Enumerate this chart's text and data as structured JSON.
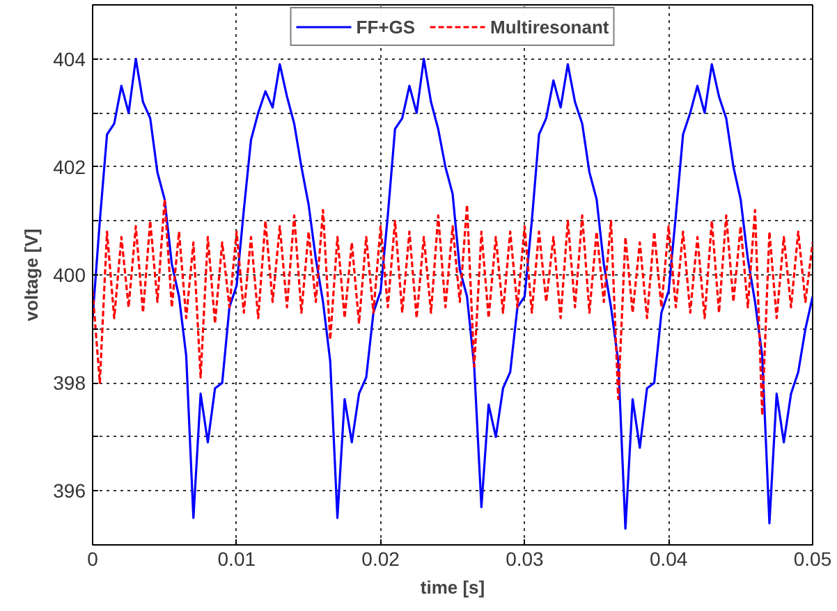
{
  "chart_data": {
    "type": "line",
    "xlabel": "time [s]",
    "ylabel": "voltage [V]",
    "x": [
      0,
      0.0005,
      0.001,
      0.0015,
      0.002,
      0.0025,
      0.003,
      0.0035,
      0.004,
      0.0045,
      0.005,
      0.0055,
      0.006,
      0.0065,
      0.007,
      0.0075,
      0.008,
      0.0085,
      0.009,
      0.0095,
      0.01,
      0.0105,
      0.011,
      0.0115,
      0.012,
      0.0125,
      0.013,
      0.0135,
      0.014,
      0.0145,
      0.015,
      0.0155,
      0.016,
      0.0165,
      0.017,
      0.0175,
      0.018,
      0.0185,
      0.019,
      0.0195,
      0.02,
      0.0205,
      0.021,
      0.0215,
      0.022,
      0.0225,
      0.023,
      0.0235,
      0.024,
      0.0245,
      0.025,
      0.0255,
      0.026,
      0.0265,
      0.027,
      0.0275,
      0.028,
      0.0285,
      0.029,
      0.0295,
      0.03,
      0.0305,
      0.031,
      0.0315,
      0.032,
      0.0325,
      0.033,
      0.0335,
      0.034,
      0.0345,
      0.035,
      0.0355,
      0.036,
      0.0365,
      0.037,
      0.0375,
      0.038,
      0.0385,
      0.039,
      0.0395,
      0.04,
      0.0405,
      0.041,
      0.0415,
      0.042,
      0.0425,
      0.043,
      0.0435,
      0.044,
      0.0445,
      0.045,
      0.0455,
      0.046,
      0.0465,
      0.047,
      0.0475,
      0.048,
      0.0485,
      0.049,
      0.0495,
      0.05
    ],
    "series": [
      {
        "name": "FF+GS",
        "color": "#0000ff",
        "line_style": "solid",
        "values": [
          399.2,
          401.0,
          402.6,
          402.8,
          403.5,
          403.0,
          404.0,
          403.2,
          402.9,
          401.9,
          401.4,
          400.2,
          399.6,
          398.5,
          395.5,
          397.8,
          396.9,
          397.9,
          398.0,
          399.4,
          399.8,
          401.2,
          402.5,
          403.0,
          403.4,
          403.1,
          403.9,
          403.3,
          402.8,
          402.0,
          401.3,
          400.3,
          399.5,
          398.4,
          395.5,
          397.7,
          396.9,
          397.8,
          398.1,
          399.3,
          399.7,
          401.1,
          402.7,
          402.9,
          403.5,
          403.0,
          404.0,
          403.2,
          402.7,
          402.0,
          401.5,
          400.1,
          399.6,
          398.3,
          395.7,
          397.6,
          397.0,
          397.9,
          398.2,
          399.4,
          399.6,
          401.0,
          402.6,
          402.9,
          403.6,
          403.1,
          403.9,
          403.2,
          402.8,
          401.9,
          401.4,
          400.2,
          399.4,
          398.4,
          395.3,
          397.7,
          396.8,
          397.9,
          398.0,
          399.3,
          399.7,
          401.1,
          402.6,
          403.0,
          403.5,
          403.0,
          403.9,
          403.3,
          402.9,
          402.0,
          401.4,
          400.3,
          399.5,
          398.5,
          395.4,
          397.8,
          396.9,
          397.8,
          398.2,
          399.0,
          399.6
        ]
      },
      {
        "name": "Multiresonant",
        "color": "#ff0000",
        "line_style": "dashed",
        "values": [
          399.7,
          398.0,
          400.8,
          399.2,
          400.7,
          399.4,
          400.9,
          399.3,
          401.0,
          399.5,
          401.4,
          399.4,
          400.8,
          399.2,
          400.6,
          398.1,
          400.7,
          399.1,
          400.6,
          399.4,
          400.8,
          399.3,
          400.7,
          399.2,
          401.0,
          399.5,
          400.9,
          399.4,
          401.1,
          399.3,
          400.8,
          399.5,
          401.2,
          398.8,
          400.7,
          399.2,
          400.6,
          399.1,
          400.7,
          399.3,
          400.9,
          399.4,
          401.0,
          399.3,
          400.8,
          399.2,
          400.7,
          399.3,
          401.1,
          399.4,
          400.9,
          399.5,
          401.3,
          398.3,
          400.8,
          399.2,
          400.7,
          399.3,
          400.8,
          399.4,
          400.9,
          399.3,
          400.8,
          399.5,
          400.7,
          399.2,
          401.0,
          399.4,
          401.1,
          399.3,
          400.8,
          399.5,
          401.0,
          397.7,
          400.7,
          399.3,
          400.6,
          399.2,
          400.8,
          399.4,
          400.9,
          399.4,
          400.8,
          399.3,
          400.7,
          399.2,
          401.0,
          399.3,
          401.1,
          399.5,
          400.9,
          399.4,
          401.2,
          397.4,
          400.8,
          399.2,
          400.7,
          399.4,
          400.8,
          399.5,
          400.6
        ]
      }
    ],
    "xlim": [
      0,
      0.05
    ],
    "xticks": [
      0,
      0.01,
      0.02,
      0.03,
      0.04,
      0.05
    ],
    "ylim": [
      395,
      405
    ],
    "yticks": [
      396,
      {
        "value": 397,
        "label": null
      },
      398,
      {
        "value": 399,
        "label": null
      },
      400,
      {
        "value": 401,
        "label": null
      },
      402,
      {
        "value": 403,
        "label": null
      },
      404
    ],
    "grid": true,
    "legend": "top",
    "marker": "none"
  }
}
